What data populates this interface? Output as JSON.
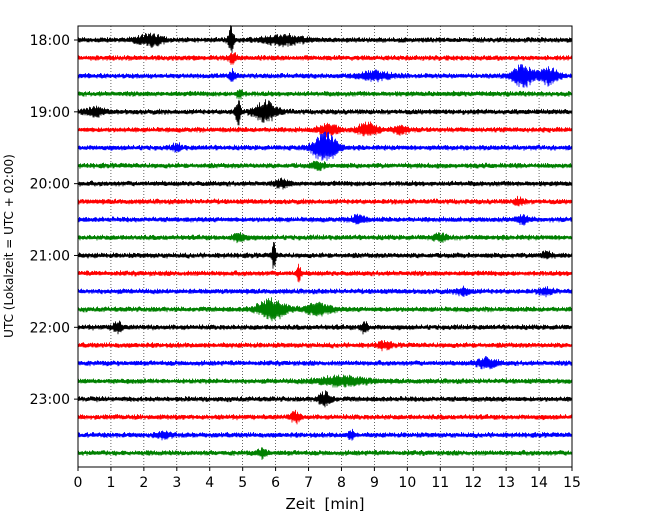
{
  "chart_data": {
    "type": "line",
    "title": "",
    "xlabel": "Zeit  [min]",
    "ylabel": "UTC (Lokalzeit = UTC + 02:00)",
    "xlim": [
      0,
      15
    ],
    "x_ticks": [
      0,
      1,
      2,
      3,
      4,
      5,
      6,
      7,
      8,
      9,
      10,
      11,
      12,
      13,
      14,
      15
    ],
    "x_tick_labels": [
      "0",
      "1",
      "2",
      "3",
      "4",
      "5",
      "6",
      "7",
      "8",
      "9",
      "10",
      "11",
      "12",
      "13",
      "14",
      "15"
    ],
    "y_tick_labels": [
      "18:00",
      "19:00",
      "20:00",
      "21:00",
      "22:00",
      "23:00"
    ],
    "grid": "vertical dotted at each minute",
    "trace_colors": [
      "#000000",
      "#ff0000",
      "#0000ff",
      "#008000"
    ],
    "series": [
      {
        "start": "18:00",
        "color": "#000000",
        "bursts": [
          {
            "t": 2.2,
            "amp": 0.5,
            "width": 0.4
          },
          {
            "t": 4.65,
            "amp": 1.2,
            "width": 0.08
          },
          {
            "t": 6.2,
            "amp": 0.45,
            "width": 0.6
          }
        ]
      },
      {
        "start": "18:15",
        "color": "#ff0000",
        "bursts": [
          {
            "t": 4.7,
            "amp": 0.5,
            "width": 0.1
          }
        ]
      },
      {
        "start": "18:30",
        "color": "#0000ff",
        "bursts": [
          {
            "t": 4.7,
            "amp": 0.45,
            "width": 0.1
          },
          {
            "t": 9.0,
            "amp": 0.35,
            "width": 0.5
          },
          {
            "t": 13.5,
            "amp": 0.9,
            "width": 0.35
          },
          {
            "t": 14.3,
            "amp": 0.7,
            "width": 0.3
          }
        ]
      },
      {
        "start": "18:45",
        "color": "#008000",
        "bursts": [
          {
            "t": 4.9,
            "amp": 0.4,
            "width": 0.1
          }
        ]
      },
      {
        "start": "19:00",
        "color": "#000000",
        "bursts": [
          {
            "t": 4.85,
            "amp": 1.3,
            "width": 0.08
          },
          {
            "t": 5.7,
            "amp": 0.9,
            "width": 0.35
          },
          {
            "t": 0.5,
            "amp": 0.35,
            "width": 0.3
          }
        ]
      },
      {
        "start": "19:15",
        "color": "#ff0000",
        "bursts": [
          {
            "t": 7.6,
            "amp": 0.5,
            "width": 0.3
          },
          {
            "t": 8.8,
            "amp": 0.6,
            "width": 0.3
          },
          {
            "t": 9.8,
            "amp": 0.4,
            "width": 0.2
          }
        ]
      },
      {
        "start": "19:30",
        "color": "#0000ff",
        "bursts": [
          {
            "t": 7.5,
            "amp": 1.4,
            "width": 0.35
          },
          {
            "t": 3.0,
            "amp": 0.3,
            "width": 0.15
          }
        ]
      },
      {
        "start": "19:45",
        "color": "#008000",
        "bursts": [
          {
            "t": 7.3,
            "amp": 0.3,
            "width": 0.2
          }
        ]
      },
      {
        "start": "20:00",
        "color": "#000000",
        "bursts": [
          {
            "t": 6.2,
            "amp": 0.35,
            "width": 0.2
          }
        ]
      },
      {
        "start": "20:15",
        "color": "#ff0000",
        "bursts": [
          {
            "t": 13.4,
            "amp": 0.3,
            "width": 0.15
          }
        ]
      },
      {
        "start": "20:30",
        "color": "#0000ff",
        "bursts": [
          {
            "t": 8.5,
            "amp": 0.4,
            "width": 0.2
          },
          {
            "t": 13.5,
            "amp": 0.35,
            "width": 0.2
          }
        ]
      },
      {
        "start": "20:45",
        "color": "#008000",
        "bursts": [
          {
            "t": 4.9,
            "amp": 0.35,
            "width": 0.2
          },
          {
            "t": 11.0,
            "amp": 0.3,
            "width": 0.2
          }
        ]
      },
      {
        "start": "21:00",
        "color": "#000000",
        "bursts": [
          {
            "t": 5.95,
            "amp": 1.4,
            "width": 0.06
          },
          {
            "t": 14.2,
            "amp": 0.3,
            "width": 0.15
          }
        ]
      },
      {
        "start": "21:15",
        "color": "#ff0000",
        "bursts": [
          {
            "t": 6.7,
            "amp": 0.7,
            "width": 0.07
          }
        ]
      },
      {
        "start": "21:30",
        "color": "#0000ff",
        "bursts": [
          {
            "t": 11.7,
            "amp": 0.35,
            "width": 0.2
          },
          {
            "t": 14.2,
            "amp": 0.3,
            "width": 0.2
          }
        ]
      },
      {
        "start": "21:45",
        "color": "#008000",
        "bursts": [
          {
            "t": 5.9,
            "amp": 0.9,
            "width": 0.45
          },
          {
            "t": 7.3,
            "amp": 0.5,
            "width": 0.4
          }
        ]
      },
      {
        "start": "22:00",
        "color": "#000000",
        "bursts": [
          {
            "t": 1.2,
            "amp": 0.45,
            "width": 0.15
          },
          {
            "t": 8.7,
            "amp": 0.55,
            "width": 0.1
          }
        ]
      },
      {
        "start": "22:15",
        "color": "#ff0000",
        "bursts": [
          {
            "t": 9.3,
            "amp": 0.3,
            "width": 0.2
          }
        ]
      },
      {
        "start": "22:30",
        "color": "#0000ff",
        "bursts": [
          {
            "t": 12.4,
            "amp": 0.45,
            "width": 0.3
          }
        ]
      },
      {
        "start": "22:45",
        "color": "#008000",
        "bursts": [
          {
            "t": 8.0,
            "amp": 0.4,
            "width": 0.8
          }
        ]
      },
      {
        "start": "23:00",
        "color": "#000000",
        "bursts": [
          {
            "t": 7.5,
            "amp": 0.6,
            "width": 0.2
          }
        ]
      },
      {
        "start": "23:15",
        "color": "#ff0000",
        "bursts": [
          {
            "t": 6.6,
            "amp": 0.45,
            "width": 0.15
          }
        ]
      },
      {
        "start": "23:30",
        "color": "#0000ff",
        "bursts": [
          {
            "t": 2.6,
            "amp": 0.3,
            "width": 0.2
          },
          {
            "t": 8.3,
            "amp": 0.4,
            "width": 0.1
          }
        ]
      },
      {
        "start": "23:45",
        "color": "#008000",
        "bursts": [
          {
            "t": 5.6,
            "amp": 0.35,
            "width": 0.15
          }
        ]
      }
    ]
  }
}
